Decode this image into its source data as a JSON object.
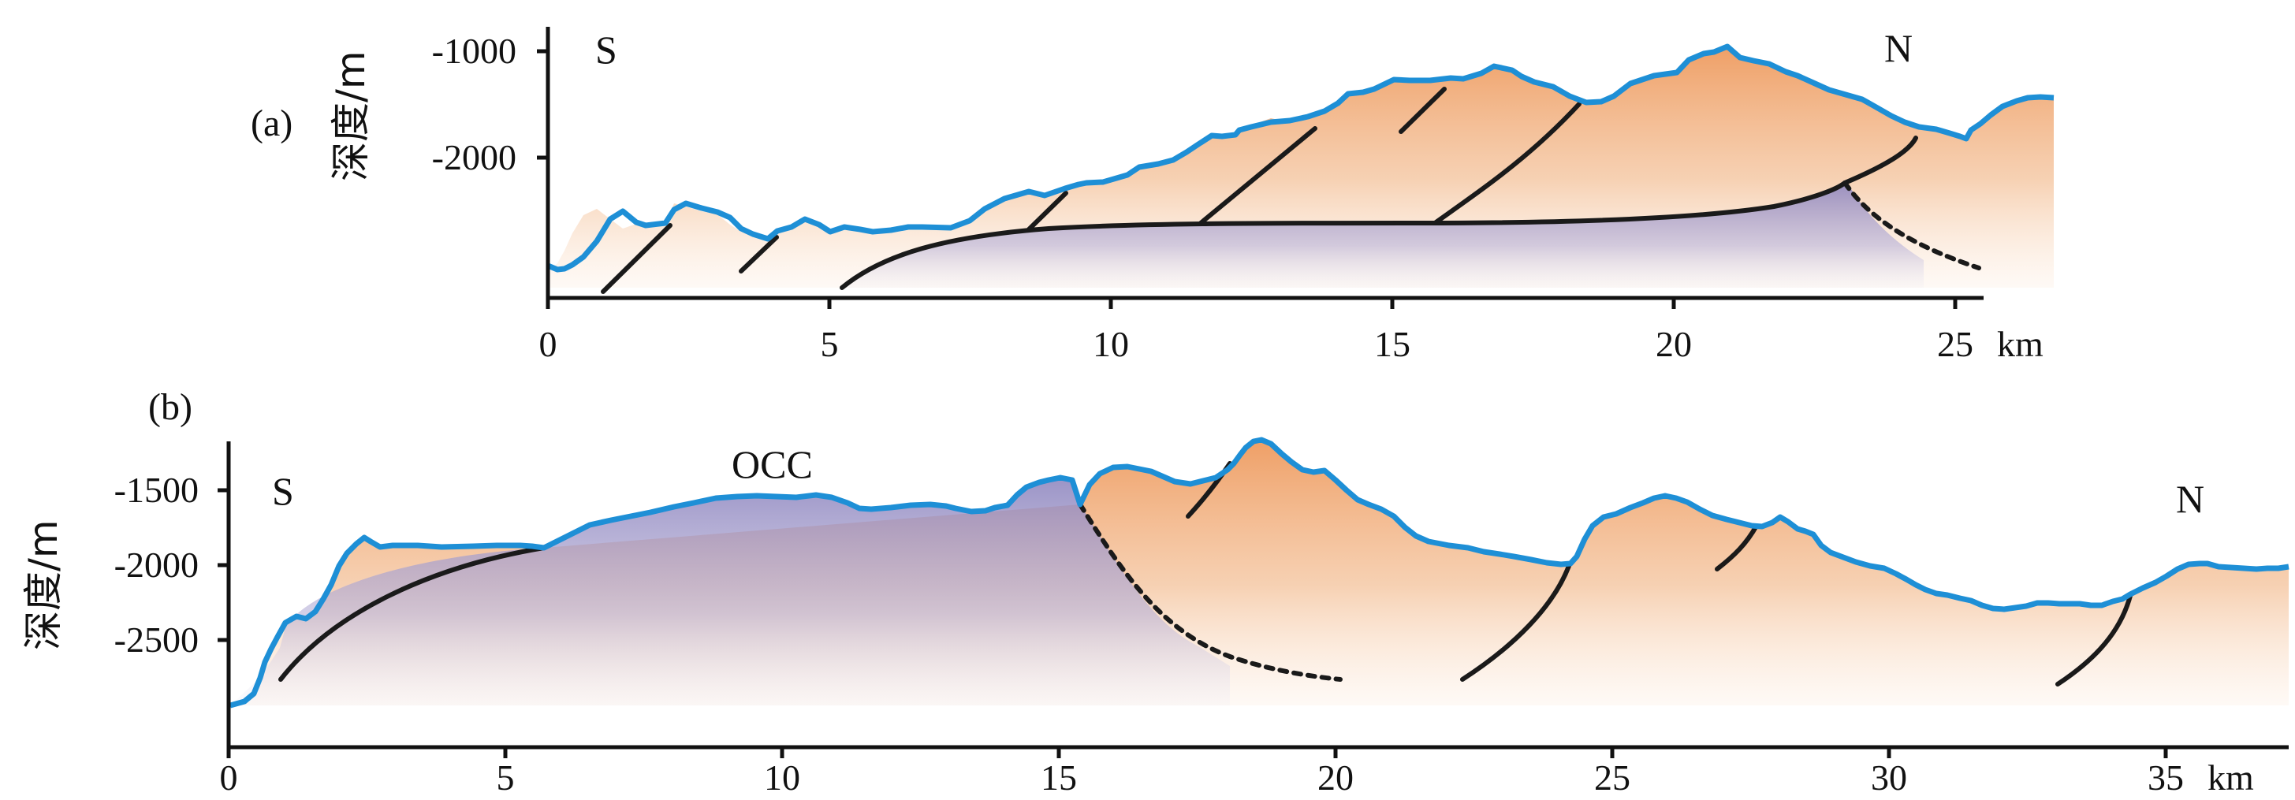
{
  "colors": {
    "seafloor": "#1e8fd6",
    "fault": "#1a1a1a",
    "hanging_wall": "#eea06a",
    "footwall": "#9a90c6",
    "axis": "#111111"
  },
  "panel_a": {
    "label": "(a)",
    "y_axis_title": "深度/m",
    "y_ticks": [
      "-1000",
      "-2000"
    ],
    "x_ticks": [
      "0",
      "5",
      "10",
      "15",
      "20",
      "25"
    ],
    "x_unit": "km",
    "left_marker": "S",
    "right_marker": "N"
  },
  "panel_b": {
    "label": "(b)",
    "y_axis_title": "深度/m",
    "y_ticks": [
      "-1500",
      "-2000",
      "-2500"
    ],
    "x_ticks": [
      "0",
      "5",
      "10",
      "15",
      "20",
      "25",
      "30",
      "35"
    ],
    "x_unit": "km",
    "left_marker": "S",
    "right_marker": "N",
    "dome_label": "OCC"
  }
}
